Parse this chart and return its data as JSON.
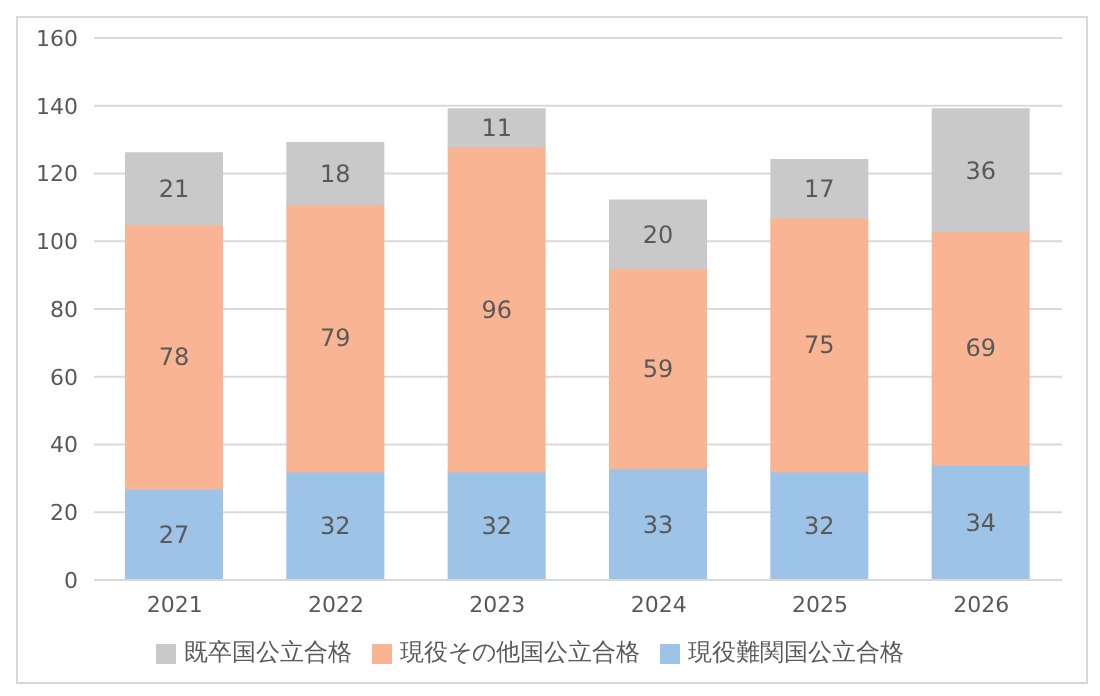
{
  "chart_data": {
    "type": "bar",
    "stacked": true,
    "categories": [
      "2021",
      "2022",
      "2023",
      "2024",
      "2025",
      "2026"
    ],
    "series": [
      {
        "name": "現役難関国公立合格",
        "color": "#9dc3e6",
        "values": [
          27,
          32,
          32,
          33,
          32,
          34
        ]
      },
      {
        "name": "現役その他国公立合格",
        "color": "#f8b493",
        "values": [
          78,
          79,
          96,
          59,
          75,
          69
        ]
      },
      {
        "name": "既卒国公立合格",
        "color": "#c9c9c9",
        "values": [
          21,
          18,
          11,
          20,
          17,
          36
        ]
      }
    ],
    "ylim": [
      0,
      160
    ],
    "yticks": [
      0,
      20,
      40,
      60,
      80,
      100,
      120,
      140,
      160
    ],
    "grid": "y",
    "legend": "bottom",
    "data_labels": true
  }
}
